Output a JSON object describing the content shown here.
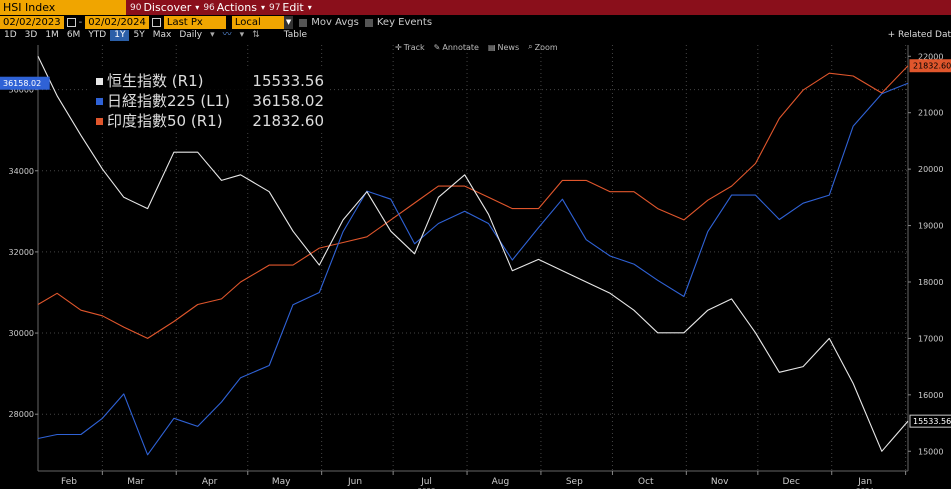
{
  "toolbar": {
    "ticker": "HSI Index",
    "menus": [
      {
        "num": "90",
        "label": "Discover"
      },
      {
        "num": "96",
        "label": "Actions"
      },
      {
        "num": "97",
        "label": "Edit"
      }
    ]
  },
  "controls": {
    "start_date": "02/02/2023",
    "end_date": "02/02/2024",
    "field": "Last Px",
    "currency": "Local CCY",
    "mov_avgs": "Mov Avgs",
    "key_events": "Key Events"
  },
  "periods": [
    "1D",
    "3D",
    "1M",
    "6M",
    "YTD",
    "1Y",
    "5Y",
    "Max"
  ],
  "active_period": "1Y",
  "frequency": "Daily",
  "table_label": "Table",
  "related_label": "+ Related Dat",
  "chart_tools": [
    "Track",
    "Annotate",
    "News",
    "Zoom"
  ],
  "colors": {
    "hsi": "#e8e8e8",
    "nikkei": "#2f62d6",
    "nifty": "#e0562c",
    "ticker_bg": "#f0a500",
    "bar_bg": "#8a0f1b"
  },
  "chart_data": {
    "type": "line",
    "x_ticks": [
      "Feb",
      "Mar",
      "Apr",
      "May",
      "Jun",
      "Jul",
      "Aug",
      "Sep",
      "Oct",
      "Nov",
      "Dec",
      "Jan"
    ],
    "x_year_labels": [
      "2023",
      "2024"
    ],
    "left_axis": {
      "ticks": [
        "28000",
        "30000",
        "32000",
        "34000",
        "36000"
      ],
      "range": [
        26600,
        37100
      ]
    },
    "right_axis": {
      "ticks": [
        "15000",
        "16000",
        "17000",
        "18000",
        "19000",
        "20000",
        "21000",
        "22000"
      ],
      "range": [
        14650,
        22200
      ]
    },
    "series": [
      {
        "name": "恒生指数",
        "axis": "R1",
        "last": "15533.56",
        "x_dates": [
          "2023-02-02",
          "2023-02-10",
          "2023-02-20",
          "2023-03-01",
          "2023-03-10",
          "2023-03-20",
          "2023-03-31",
          "2023-04-10",
          "2023-04-20",
          "2023-04-28",
          "2023-05-10",
          "2023-05-20",
          "2023-05-31",
          "2023-06-10",
          "2023-06-20",
          "2023-06-30",
          "2023-07-10",
          "2023-07-20",
          "2023-07-31",
          "2023-08-10",
          "2023-08-20",
          "2023-08-31",
          "2023-09-10",
          "2023-09-20",
          "2023-09-30",
          "2023-10-10",
          "2023-10-20",
          "2023-10-31",
          "2023-11-10",
          "2023-11-20",
          "2023-11-30",
          "2023-12-10",
          "2023-12-20",
          "2023-12-31",
          "2024-01-10",
          "2024-01-22",
          "2024-02-02"
        ],
        "values": [
          22000,
          21300,
          20600,
          20000,
          19500,
          19300,
          20300,
          20300,
          19800,
          19900,
          19600,
          18900,
          18300,
          19100,
          19600,
          18900,
          18500,
          19500,
          19900,
          19200,
          18200,
          18400,
          18200,
          18000,
          17800,
          17500,
          17100,
          17100,
          17500,
          17700,
          17100,
          16400,
          16500,
          17000,
          16200,
          15000,
          15533.56
        ]
      },
      {
        "name": "日経指數225",
        "axis": "L1",
        "last": "36158.02",
        "x_dates": [
          "2023-02-02",
          "2023-02-10",
          "2023-02-20",
          "2023-03-01",
          "2023-03-10",
          "2023-03-20",
          "2023-03-31",
          "2023-04-10",
          "2023-04-20",
          "2023-04-28",
          "2023-05-10",
          "2023-05-20",
          "2023-05-31",
          "2023-06-10",
          "2023-06-20",
          "2023-06-30",
          "2023-07-10",
          "2023-07-20",
          "2023-07-31",
          "2023-08-10",
          "2023-08-20",
          "2023-08-31",
          "2023-09-10",
          "2023-09-20",
          "2023-09-30",
          "2023-10-10",
          "2023-10-20",
          "2023-10-31",
          "2023-11-10",
          "2023-11-20",
          "2023-11-30",
          "2023-12-10",
          "2023-12-20",
          "2023-12-31",
          "2024-01-10",
          "2024-01-22",
          "2024-02-02"
        ],
        "values": [
          27400,
          27500,
          27500,
          27900,
          28500,
          27000,
          27900,
          27700,
          28300,
          28900,
          29200,
          30700,
          31000,
          32500,
          33500,
          33300,
          32200,
          32700,
          33000,
          32700,
          31800,
          32600,
          33300,
          32300,
          31900,
          31700,
          31300,
          30900,
          32500,
          33400,
          33400,
          32800,
          33200,
          33400,
          35100,
          35900,
          36158.02
        ]
      },
      {
        "name": "印度指數50",
        "axis": "R1",
        "last": "21832.60",
        "x_dates": [
          "2023-02-02",
          "2023-02-10",
          "2023-02-20",
          "2023-03-01",
          "2023-03-10",
          "2023-03-20",
          "2023-03-31",
          "2023-04-10",
          "2023-04-20",
          "2023-04-28",
          "2023-05-10",
          "2023-05-20",
          "2023-05-31",
          "2023-06-10",
          "2023-06-20",
          "2023-06-30",
          "2023-07-10",
          "2023-07-20",
          "2023-07-31",
          "2023-08-10",
          "2023-08-20",
          "2023-08-31",
          "2023-09-10",
          "2023-09-20",
          "2023-09-30",
          "2023-10-10",
          "2023-10-20",
          "2023-10-31",
          "2023-11-10",
          "2023-11-20",
          "2023-11-30",
          "2023-12-10",
          "2023-12-20",
          "2023-12-31",
          "2024-01-10",
          "2024-01-22",
          "2024-02-02"
        ],
        "values": [
          17600,
          17800,
          17500,
          17400,
          17200,
          17000,
          17300,
          17600,
          17700,
          18000,
          18300,
          18300,
          18600,
          18700,
          18800,
          19100,
          19400,
          19700,
          19700,
          19500,
          19300,
          19300,
          19800,
          19800,
          19600,
          19600,
          19300,
          19100,
          19450,
          19700,
          20100,
          20900,
          21400,
          21700,
          21650,
          21350,
          21832.6
        ]
      }
    ]
  }
}
